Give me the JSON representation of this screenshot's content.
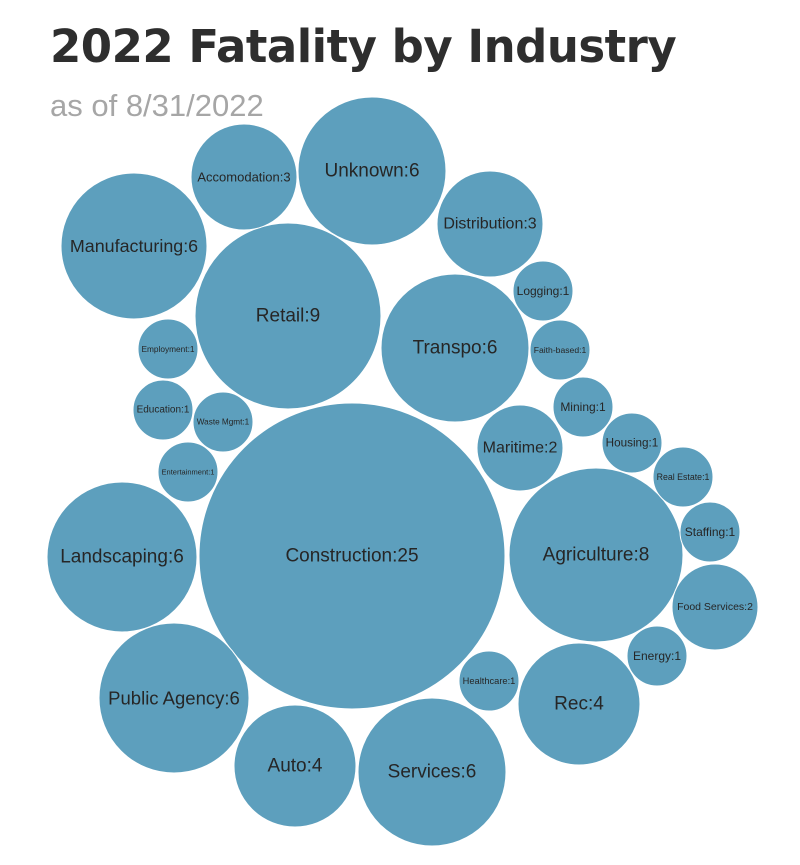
{
  "header": {
    "title": "2022 Fatality by Industry",
    "subtitle": "as of 8/31/2022"
  },
  "chart_data": {
    "type": "bubble",
    "title": "2022 Fatality by Industry",
    "subtitle": "as of 8/31/2022",
    "bubble_color": "#5d9fbd",
    "label_separator": ":",
    "items": [
      {
        "name": "Construction",
        "value": 25
      },
      {
        "name": "Retail",
        "value": 9
      },
      {
        "name": "Agriculture",
        "value": 8
      },
      {
        "name": "Unknown",
        "value": 6
      },
      {
        "name": "Manufacturing",
        "value": 6
      },
      {
        "name": "Transpo",
        "value": 6
      },
      {
        "name": "Landscaping",
        "value": 6
      },
      {
        "name": "Public Agency",
        "value": 6
      },
      {
        "name": "Services",
        "value": 6
      },
      {
        "name": "Auto",
        "value": 4
      },
      {
        "name": "Rec",
        "value": 4
      },
      {
        "name": "Accomodation",
        "value": 3
      },
      {
        "name": "Distribution",
        "value": 3
      },
      {
        "name": "Maritime",
        "value": 2
      },
      {
        "name": "Food Services",
        "value": 2
      },
      {
        "name": "Logging",
        "value": 1
      },
      {
        "name": "Faith-based",
        "value": 1
      },
      {
        "name": "Employment",
        "value": 1
      },
      {
        "name": "Education",
        "value": 1
      },
      {
        "name": "Waste Mgmt",
        "value": 1
      },
      {
        "name": "Entertainment",
        "value": 1
      },
      {
        "name": "Mining",
        "value": 1
      },
      {
        "name": "Housing",
        "value": 1
      },
      {
        "name": "Real Estate",
        "value": 1
      },
      {
        "name": "Staffing",
        "value": 1
      },
      {
        "name": "Energy",
        "value": 1
      },
      {
        "name": "Healthcare",
        "value": 1
      }
    ]
  }
}
